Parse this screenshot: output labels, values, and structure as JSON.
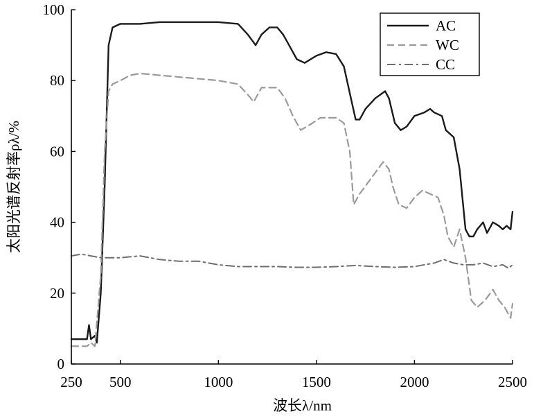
{
  "chart_data": {
    "type": "line",
    "xlabel": "波长λ/nm",
    "ylabel": "太阳光谱反射率ρλ/%",
    "xlim": [
      250,
      2500
    ],
    "ylim": [
      0,
      100
    ],
    "xticks": [
      250,
      500,
      1000,
      1500,
      2000,
      2500
    ],
    "yticks": [
      0,
      20,
      40,
      60,
      80,
      100
    ],
    "grid": false,
    "legend_position": "top-right",
    "series": [
      {
        "name": "AC",
        "color": "#1a1a1a",
        "dash": "solid",
        "points": [
          [
            250,
            7
          ],
          [
            330,
            7
          ],
          [
            340,
            11
          ],
          [
            350,
            7
          ],
          [
            370,
            8
          ],
          [
            380,
            6
          ],
          [
            400,
            20
          ],
          [
            420,
            50
          ],
          [
            440,
            90
          ],
          [
            460,
            95
          ],
          [
            500,
            96
          ],
          [
            600,
            96
          ],
          [
            700,
            96.5
          ],
          [
            800,
            96.5
          ],
          [
            900,
            96.5
          ],
          [
            1000,
            96.5
          ],
          [
            1100,
            96
          ],
          [
            1150,
            93
          ],
          [
            1190,
            90
          ],
          [
            1220,
            93
          ],
          [
            1260,
            95
          ],
          [
            1300,
            95
          ],
          [
            1330,
            93
          ],
          [
            1360,
            90
          ],
          [
            1400,
            86
          ],
          [
            1440,
            85
          ],
          [
            1500,
            87
          ],
          [
            1550,
            88
          ],
          [
            1600,
            87.5
          ],
          [
            1640,
            84
          ],
          [
            1680,
            74
          ],
          [
            1700,
            69
          ],
          [
            1720,
            69
          ],
          [
            1750,
            72
          ],
          [
            1800,
            75
          ],
          [
            1850,
            77
          ],
          [
            1870,
            75
          ],
          [
            1900,
            68
          ],
          [
            1930,
            66
          ],
          [
            1960,
            67
          ],
          [
            2000,
            70
          ],
          [
            2050,
            71
          ],
          [
            2080,
            72
          ],
          [
            2100,
            71
          ],
          [
            2140,
            70
          ],
          [
            2160,
            66
          ],
          [
            2200,
            64
          ],
          [
            2230,
            55
          ],
          [
            2260,
            38
          ],
          [
            2280,
            36
          ],
          [
            2300,
            36
          ],
          [
            2320,
            38
          ],
          [
            2350,
            40
          ],
          [
            2370,
            37
          ],
          [
            2400,
            40
          ],
          [
            2430,
            39
          ],
          [
            2450,
            38
          ],
          [
            2470,
            39
          ],
          [
            2490,
            38
          ],
          [
            2500,
            43
          ]
        ]
      },
      {
        "name": "WC",
        "color": "#9a9a9a",
        "dash": "dashed",
        "points": [
          [
            250,
            5
          ],
          [
            330,
            5
          ],
          [
            350,
            6
          ],
          [
            370,
            5
          ],
          [
            400,
            25
          ],
          [
            420,
            60
          ],
          [
            440,
            77
          ],
          [
            460,
            79
          ],
          [
            500,
            80
          ],
          [
            550,
            81.5
          ],
          [
            600,
            82
          ],
          [
            700,
            81.5
          ],
          [
            800,
            81
          ],
          [
            900,
            80.5
          ],
          [
            1000,
            80
          ],
          [
            1050,
            79.5
          ],
          [
            1100,
            79
          ],
          [
            1150,
            76
          ],
          [
            1180,
            74
          ],
          [
            1220,
            78
          ],
          [
            1260,
            78
          ],
          [
            1300,
            78
          ],
          [
            1340,
            75
          ],
          [
            1380,
            70
          ],
          [
            1420,
            66
          ],
          [
            1480,
            68
          ],
          [
            1520,
            69.5
          ],
          [
            1600,
            69.5
          ],
          [
            1640,
            68
          ],
          [
            1670,
            60
          ],
          [
            1690,
            45
          ],
          [
            1720,
            48
          ],
          [
            1760,
            51
          ],
          [
            1800,
            54
          ],
          [
            1840,
            57
          ],
          [
            1870,
            55
          ],
          [
            1890,
            50
          ],
          [
            1920,
            45
          ],
          [
            1960,
            44
          ],
          [
            2000,
            47
          ],
          [
            2040,
            49
          ],
          [
            2080,
            48
          ],
          [
            2120,
            47
          ],
          [
            2150,
            42
          ],
          [
            2170,
            36
          ],
          [
            2200,
            33
          ],
          [
            2230,
            38
          ],
          [
            2260,
            30
          ],
          [
            2290,
            18
          ],
          [
            2320,
            16
          ],
          [
            2360,
            18
          ],
          [
            2400,
            21
          ],
          [
            2430,
            18
          ],
          [
            2460,
            16
          ],
          [
            2490,
            13
          ],
          [
            2500,
            17
          ]
        ]
      },
      {
        "name": "CC",
        "color": "#6e6e6e",
        "dash": "dashdot",
        "points": [
          [
            250,
            30.5
          ],
          [
            300,
            31
          ],
          [
            350,
            30.5
          ],
          [
            400,
            30
          ],
          [
            450,
            30
          ],
          [
            500,
            30
          ],
          [
            600,
            30.5
          ],
          [
            700,
            29.5
          ],
          [
            800,
            29
          ],
          [
            900,
            29
          ],
          [
            1000,
            28
          ],
          [
            1100,
            27.5
          ],
          [
            1200,
            27.5
          ],
          [
            1300,
            27.5
          ],
          [
            1400,
            27.3
          ],
          [
            1500,
            27.3
          ],
          [
            1600,
            27.5
          ],
          [
            1700,
            27.8
          ],
          [
            1800,
            27.5
          ],
          [
            1900,
            27.3
          ],
          [
            2000,
            27.5
          ],
          [
            2100,
            28.5
          ],
          [
            2150,
            29.5
          ],
          [
            2200,
            28.5
          ],
          [
            2250,
            28
          ],
          [
            2300,
            28
          ],
          [
            2350,
            28.5
          ],
          [
            2400,
            27.5
          ],
          [
            2450,
            28
          ],
          [
            2480,
            27
          ],
          [
            2500,
            28
          ]
        ]
      }
    ]
  }
}
